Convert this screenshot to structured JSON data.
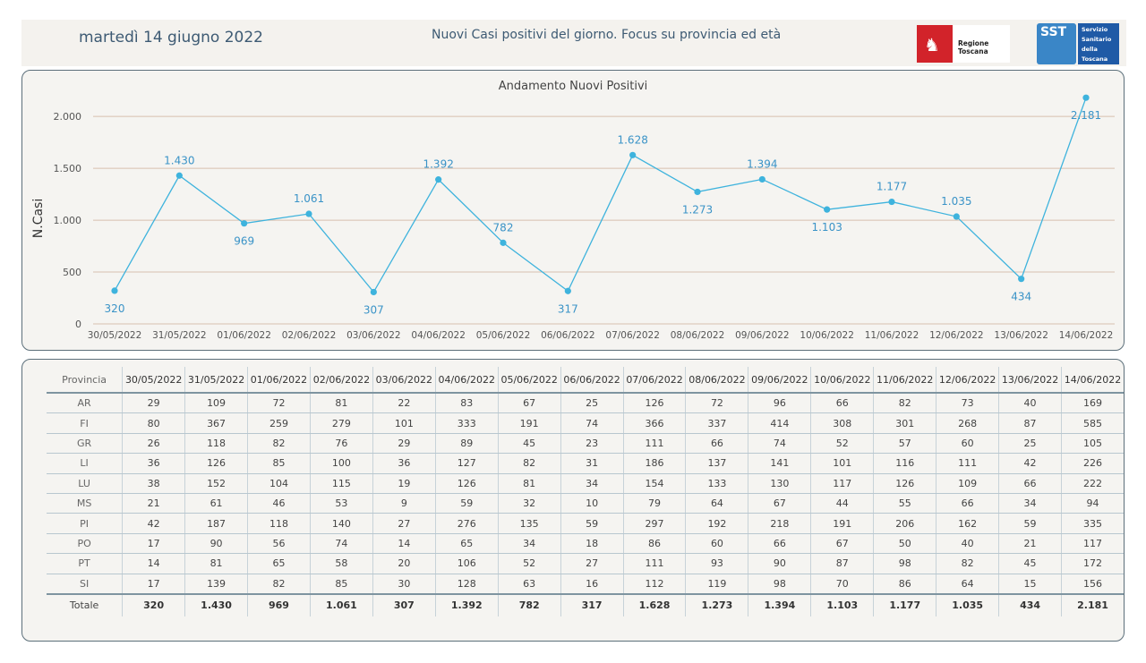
{
  "header": {
    "date": "martedì 14 giugno 2022",
    "title": "Nuovi Casi positivi del giorno. Focus su provincia ed età",
    "logo_regione": "Regione Toscana",
    "logo_sst_short": "SST",
    "logo_sst_lines": [
      "Servizio",
      "Sanitario",
      "della",
      "Toscana"
    ]
  },
  "colors": {
    "line": "#3eb3dd",
    "label": "#3a93c7",
    "grid": "#d8bfae"
  },
  "chart_data": {
    "type": "line",
    "title": "Andamento Nuovi Positivi",
    "ylabel": "N.Casi",
    "xlabel": "",
    "ylim": [
      0,
      2200
    ],
    "yticks": [
      0,
      500,
      1000,
      1500,
      2000
    ],
    "ytick_labels": [
      "0",
      "500",
      "1.000",
      "1.500",
      "2.000"
    ],
    "categories": [
      "30/05/2022",
      "31/05/2022",
      "01/06/2022",
      "02/06/2022",
      "03/06/2022",
      "04/06/2022",
      "05/06/2022",
      "06/06/2022",
      "07/06/2022",
      "08/06/2022",
      "09/06/2022",
      "10/06/2022",
      "11/06/2022",
      "12/06/2022",
      "13/06/2022",
      "14/06/2022"
    ],
    "values": [
      320,
      1430,
      969,
      1061,
      307,
      1392,
      782,
      317,
      1628,
      1273,
      1394,
      1103,
      1177,
      1035,
      434,
      2181
    ],
    "value_labels": [
      "320",
      "1.430",
      "969",
      "1.061",
      "307",
      "1.392",
      "782",
      "317",
      "1.628",
      "1.273",
      "1.394",
      "1.103",
      "1.177",
      "1.035",
      "434",
      "2.181"
    ],
    "label_positions": [
      "below",
      "above",
      "below",
      "above",
      "below",
      "above",
      "above",
      "below",
      "above",
      "below",
      "above",
      "below",
      "above",
      "above",
      "below",
      "below"
    ],
    "grid": true
  },
  "table": {
    "header_label": "Provincia",
    "dates": [
      "30/05/2022",
      "31/05/2022",
      "01/06/2022",
      "02/06/2022",
      "03/06/2022",
      "04/06/2022",
      "05/06/2022",
      "06/06/2022",
      "07/06/2022",
      "08/06/2022",
      "09/06/2022",
      "10/06/2022",
      "11/06/2022",
      "12/06/2022",
      "13/06/2022",
      "14/06/2022"
    ],
    "rows": [
      {
        "name": "AR",
        "values": [
          "29",
          "109",
          "72",
          "81",
          "22",
          "83",
          "67",
          "25",
          "126",
          "72",
          "96",
          "66",
          "82",
          "73",
          "40",
          "169"
        ]
      },
      {
        "name": "FI",
        "values": [
          "80",
          "367",
          "259",
          "279",
          "101",
          "333",
          "191",
          "74",
          "366",
          "337",
          "414",
          "308",
          "301",
          "268",
          "87",
          "585"
        ]
      },
      {
        "name": "GR",
        "values": [
          "26",
          "118",
          "82",
          "76",
          "29",
          "89",
          "45",
          "23",
          "111",
          "66",
          "74",
          "52",
          "57",
          "60",
          "25",
          "105"
        ]
      },
      {
        "name": "LI",
        "values": [
          "36",
          "126",
          "85",
          "100",
          "36",
          "127",
          "82",
          "31",
          "186",
          "137",
          "141",
          "101",
          "116",
          "111",
          "42",
          "226"
        ]
      },
      {
        "name": "LU",
        "values": [
          "38",
          "152",
          "104",
          "115",
          "19",
          "126",
          "81",
          "34",
          "154",
          "133",
          "130",
          "117",
          "126",
          "109",
          "66",
          "222"
        ]
      },
      {
        "name": "MS",
        "values": [
          "21",
          "61",
          "46",
          "53",
          "9",
          "59",
          "32",
          "10",
          "79",
          "64",
          "67",
          "44",
          "55",
          "66",
          "34",
          "94"
        ]
      },
      {
        "name": "PI",
        "values": [
          "42",
          "187",
          "118",
          "140",
          "27",
          "276",
          "135",
          "59",
          "297",
          "192",
          "218",
          "191",
          "206",
          "162",
          "59",
          "335"
        ]
      },
      {
        "name": "PO",
        "values": [
          "17",
          "90",
          "56",
          "74",
          "14",
          "65",
          "34",
          "18",
          "86",
          "60",
          "66",
          "67",
          "50",
          "40",
          "21",
          "117"
        ]
      },
      {
        "name": "PT",
        "values": [
          "14",
          "81",
          "65",
          "58",
          "20",
          "106",
          "52",
          "27",
          "111",
          "93",
          "90",
          "87",
          "98",
          "82",
          "45",
          "172"
        ]
      },
      {
        "name": "SI",
        "values": [
          "17",
          "139",
          "82",
          "85",
          "30",
          "128",
          "63",
          "16",
          "112",
          "119",
          "98",
          "70",
          "86",
          "64",
          "15",
          "156"
        ]
      }
    ],
    "total": {
      "name": "Totale",
      "values": [
        "320",
        "1.430",
        "969",
        "1.061",
        "307",
        "1.392",
        "782",
        "317",
        "1.628",
        "1.273",
        "1.394",
        "1.103",
        "1.177",
        "1.035",
        "434",
        "2.181"
      ]
    }
  }
}
